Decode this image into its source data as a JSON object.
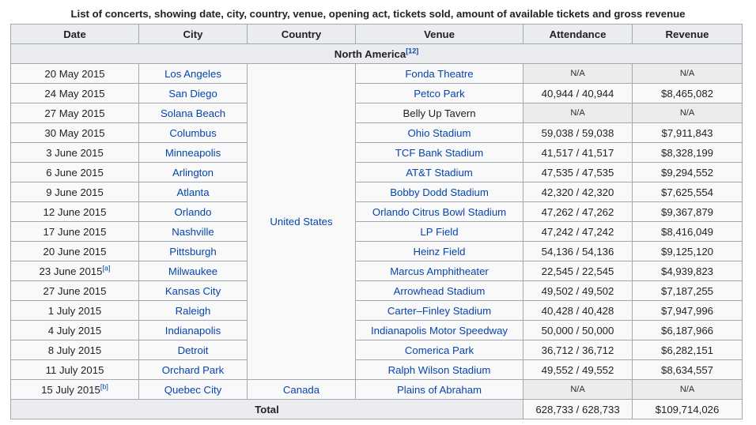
{
  "caption": "List of concerts, showing date, city, country, venue, opening act, tickets sold, amount of available tickets and gross revenue",
  "headers": [
    "Date",
    "City",
    "Country",
    "Venue",
    "Attendance",
    "Revenue"
  ],
  "region": {
    "label": "North America",
    "ref": "[12]"
  },
  "rows": [
    {
      "date": "20 May 2015",
      "note": "",
      "city": "Los Angeles",
      "venue": "Fonda Theatre",
      "venue_link": true,
      "attendance": "N/A",
      "revenue": "N/A"
    },
    {
      "date": "24 May 2015",
      "note": "",
      "city": "San Diego",
      "venue": "Petco Park",
      "venue_link": true,
      "attendance": "40,944 / 40,944",
      "revenue": "$8,465,082"
    },
    {
      "date": "27 May 2015",
      "note": "",
      "city": "Solana Beach",
      "venue": "Belly Up Tavern",
      "venue_link": false,
      "attendance": "N/A",
      "revenue": "N/A"
    },
    {
      "date": "30 May 2015",
      "note": "",
      "city": "Columbus",
      "venue": "Ohio Stadium",
      "venue_link": true,
      "attendance": "59,038 / 59,038",
      "revenue": "$7,911,843"
    },
    {
      "date": "3 June 2015",
      "note": "",
      "city": "Minneapolis",
      "venue": "TCF Bank Stadium",
      "venue_link": true,
      "attendance": "41,517 / 41,517",
      "revenue": "$8,328,199"
    },
    {
      "date": "6 June 2015",
      "note": "",
      "city": "Arlington",
      "venue": "AT&T Stadium",
      "venue_link": true,
      "attendance": "47,535 / 47,535",
      "revenue": "$9,294,552"
    },
    {
      "date": "9 June 2015",
      "note": "",
      "city": "Atlanta",
      "venue": "Bobby Dodd Stadium",
      "venue_link": true,
      "attendance": "42,320 / 42,320",
      "revenue": "$7,625,554"
    },
    {
      "date": "12 June 2015",
      "note": "",
      "city": "Orlando",
      "venue": "Orlando Citrus Bowl Stadium",
      "venue_link": true,
      "attendance": "47,262 / 47,262",
      "revenue": "$9,367,879"
    },
    {
      "date": "17 June 2015",
      "note": "",
      "city": "Nashville",
      "venue": "LP Field",
      "venue_link": true,
      "attendance": "47,242 / 47,242",
      "revenue": "$8,416,049"
    },
    {
      "date": "20 June 2015",
      "note": "",
      "city": "Pittsburgh",
      "venue": "Heinz Field",
      "venue_link": true,
      "attendance": "54,136 / 54,136",
      "revenue": "$9,125,120"
    },
    {
      "date": "23 June 2015",
      "note": "[a]",
      "city": "Milwaukee",
      "venue": "Marcus Amphitheater",
      "venue_link": true,
      "attendance": "22,545 / 22,545",
      "revenue": "$4,939,823"
    },
    {
      "date": "27 June 2015",
      "note": "",
      "city": "Kansas City",
      "venue": "Arrowhead Stadium",
      "venue_link": true,
      "attendance": "49,502 / 49,502",
      "revenue": "$7,187,255"
    },
    {
      "date": "1 July 2015",
      "note": "",
      "city": "Raleigh",
      "venue": "Carter–Finley Stadium",
      "venue_link": true,
      "attendance": "40,428 / 40,428",
      "revenue": "$7,947,996"
    },
    {
      "date": "4 July 2015",
      "note": "",
      "city": "Indianapolis",
      "venue": "Indianapolis Motor Speedway",
      "venue_link": true,
      "attendance": "50,000 / 50,000",
      "revenue": "$6,187,966"
    },
    {
      "date": "8 July 2015",
      "note": "",
      "city": "Detroit",
      "venue": "Comerica Park",
      "venue_link": true,
      "attendance": "36,712 / 36,712",
      "revenue": "$6,282,151"
    },
    {
      "date": "11 July 2015",
      "note": "",
      "city": "Orchard Park",
      "venue": "Ralph Wilson Stadium",
      "venue_link": true,
      "attendance": "49,552 / 49,552",
      "revenue": "$8,634,557"
    },
    {
      "date": "15 July 2015",
      "note": "[b]",
      "city": "Quebec City",
      "venue": "Plains of Abraham",
      "venue_link": true,
      "attendance": "N/A",
      "revenue": "N/A"
    }
  ],
  "country_us": "United States",
  "country_ca": "Canada",
  "total": {
    "label": "Total",
    "attendance": "628,733 / 628,733",
    "revenue": "$109,714,026"
  },
  "colors": {
    "link": "#0645ad",
    "header_bg": "#eaecf0",
    "cell_bg": "#f9f9f9",
    "na_bg": "#ececec",
    "border": "#a2a9b1"
  }
}
